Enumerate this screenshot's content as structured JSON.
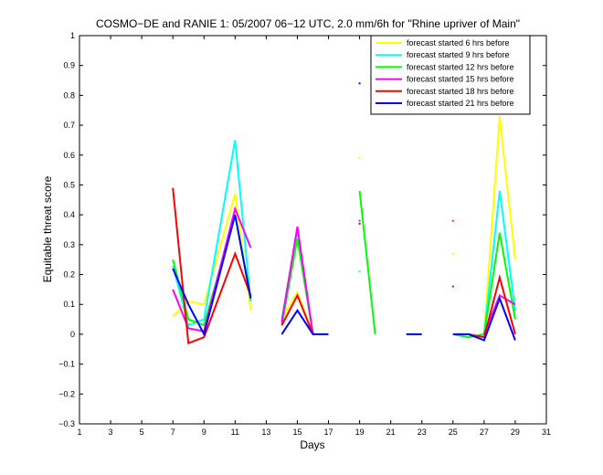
{
  "chart_data": {
    "type": "line",
    "title": "COSMO−DE and RANIE 1: 05/2007 06−12 UTC, 2.0 mm/6h for \"Rhine upriver of Main\"",
    "xlabel": "Days",
    "ylabel": "Equitable threat score",
    "xlim": [
      1,
      31
    ],
    "ylim": [
      -0.3,
      1
    ],
    "xticks": [
      1,
      3,
      5,
      7,
      9,
      11,
      13,
      15,
      17,
      19,
      21,
      23,
      25,
      27,
      29,
      31
    ],
    "yticks": [
      -0.3,
      -0.2,
      -0.1,
      0,
      0.1,
      0.2,
      0.3,
      0.4,
      0.5,
      0.6,
      0.7,
      0.8,
      0.9,
      1
    ],
    "ytick_labels": [
      "−0.3",
      "−0.2",
      "−0.1",
      "0",
      "0.1",
      "0.2",
      "0.3",
      "0.4",
      "0.5",
      "0.6",
      "0.7",
      "0.8",
      "0.9",
      "1"
    ],
    "grid": false,
    "legend_position": "top-right",
    "series": [
      {
        "name": "forecast started 6 hrs before",
        "color": "#ffff00",
        "segments": [
          [
            [
              7,
              0.06
            ],
            [
              8,
              0.11
            ],
            [
              9,
              0.1
            ],
            [
              11,
              0.47
            ],
            [
              12,
              0.08
            ]
          ],
          [
            [
              14,
              0.05
            ],
            [
              15,
              0.14
            ],
            [
              16,
              0.0
            ]
          ],
          [
            [
              27,
              0.0
            ],
            [
              28,
              0.73
            ],
            [
              29,
              0.25
            ]
          ]
        ],
        "points": [
          [
            19,
            0.59
          ],
          [
            25,
            0.27
          ]
        ]
      },
      {
        "name": "forecast started 9 hrs before",
        "color": "#00ffff",
        "segments": [
          [
            [
              7,
              0.23
            ],
            [
              8,
              0.03
            ],
            [
              9,
              0.05
            ],
            [
              11,
              0.65
            ],
            [
              12,
              0.11
            ]
          ],
          [
            [
              14,
              0.05
            ],
            [
              15,
              0.35
            ],
            [
              16,
              0.0
            ]
          ],
          [
            [
              27,
              0.0
            ],
            [
              28,
              0.48
            ],
            [
              29,
              0.08
            ]
          ]
        ],
        "points": [
          [
            19,
            0.21
          ]
        ]
      },
      {
        "name": "forecast started 12 hrs before",
        "color": "#00ff00",
        "segments": [
          [
            [
              7,
              0.25
            ],
            [
              8,
              0.05
            ],
            [
              9,
              0.03
            ],
            [
              11,
              0.4
            ],
            [
              12,
              0.12
            ]
          ],
          [
            [
              14,
              0.03
            ],
            [
              15,
              0.32
            ],
            [
              16,
              0.0
            ]
          ],
          [
            [
              19,
              0.48
            ],
            [
              20,
              0.0
            ]
          ],
          [
            [
              25,
              0.0
            ],
            [
              26,
              -0.01
            ],
            [
              27,
              0.0
            ],
            [
              28,
              0.34
            ],
            [
              29,
              0.05
            ]
          ]
        ],
        "points": []
      },
      {
        "name": "forecast started 15 hrs before",
        "color": "#ff00ff",
        "segments": [
          [
            [
              7,
              0.15
            ],
            [
              8,
              0.02
            ],
            [
              9,
              0.01
            ],
            [
              11,
              0.42
            ],
            [
              12,
              0.29
            ]
          ],
          [
            [
              14,
              0.04
            ],
            [
              15,
              0.36
            ],
            [
              16,
              0.0
            ]
          ],
          [
            [
              27,
              0.0
            ],
            [
              28,
              0.13
            ],
            [
              29,
              0.1
            ]
          ]
        ],
        "points": [
          [
            19,
            0.38
          ],
          [
            25,
            0.38
          ]
        ]
      },
      {
        "name": "forecast started 18 hrs before",
        "color": "#ff0000",
        "segments": [
          [
            [
              7,
              0.49
            ],
            [
              8,
              -0.03
            ],
            [
              9,
              -0.01
            ],
            [
              11,
              0.27
            ],
            [
              12,
              0.13
            ]
          ],
          [
            [
              14,
              0.03
            ],
            [
              15,
              0.13
            ],
            [
              16,
              0.0
            ]
          ],
          [
            [
              26,
              0.0
            ],
            [
              27,
              -0.01
            ],
            [
              28,
              0.19
            ],
            [
              29,
              0.0
            ]
          ]
        ],
        "points": [
          [
            19,
            0.37
          ],
          [
            25,
            0.16
          ]
        ]
      },
      {
        "name": "forecast started 21 hrs before",
        "color": "#0000ff",
        "segments": [
          [
            [
              7,
              0.22
            ],
            [
              8,
              0.1
            ],
            [
              9,
              0.0
            ],
            [
              11,
              0.4
            ],
            [
              12,
              0.12
            ]
          ],
          [
            [
              14,
              0.0
            ],
            [
              15,
              0.08
            ],
            [
              16,
              0.0
            ],
            [
              17,
              0.0
            ]
          ],
          [
            [
              22,
              0.0
            ],
            [
              23,
              0.0
            ]
          ],
          [
            [
              25,
              0.0
            ],
            [
              26,
              0.0
            ],
            [
              27,
              -0.02
            ],
            [
              28,
              0.12
            ],
            [
              29,
              -0.02
            ]
          ]
        ],
        "points": [
          [
            19,
            0.84
          ]
        ]
      }
    ]
  }
}
